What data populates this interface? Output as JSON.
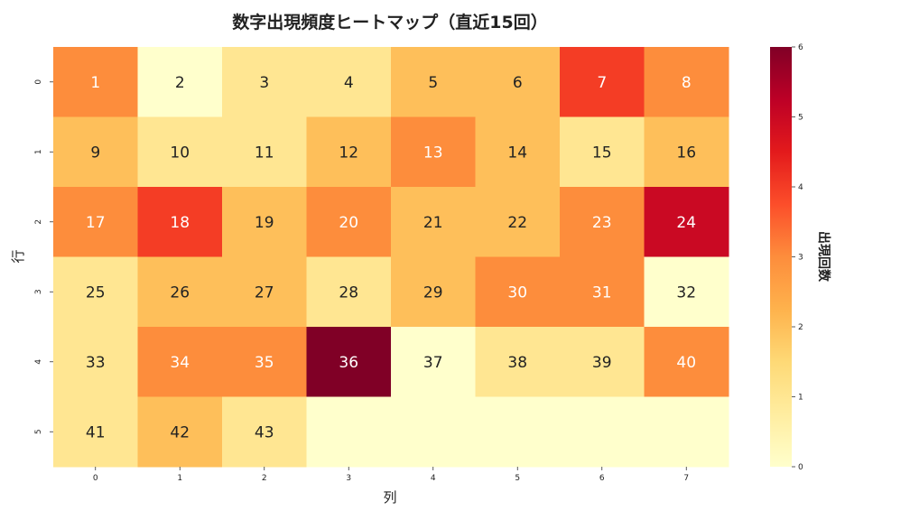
{
  "chart_data": {
    "type": "heatmap",
    "title": "数字出現頻度ヒートマップ（直近15回）",
    "xlabel": "列",
    "ylabel": "行",
    "colorbar_label": "出現回数",
    "colormap": "YlOrRd",
    "x_ticks": [
      "0",
      "1",
      "2",
      "3",
      "4",
      "5",
      "6",
      "7"
    ],
    "y_ticks": [
      "0",
      "1",
      "2",
      "3",
      "4",
      "5"
    ],
    "colorbar_range": [
      0,
      6
    ],
    "colorbar_ticks": [
      "0",
      "1",
      "2",
      "3",
      "4",
      "5",
      "6"
    ],
    "cells": [
      [
        {
          "label": "1",
          "value": 3
        },
        {
          "label": "2",
          "value": 0
        },
        {
          "label": "3",
          "value": 1
        },
        {
          "label": "4",
          "value": 1
        },
        {
          "label": "5",
          "value": 2
        },
        {
          "label": "6",
          "value": 2
        },
        {
          "label": "7",
          "value": 4
        },
        {
          "label": "8",
          "value": 3
        }
      ],
      [
        {
          "label": "9",
          "value": 2
        },
        {
          "label": "10",
          "value": 1
        },
        {
          "label": "11",
          "value": 1
        },
        {
          "label": "12",
          "value": 2
        },
        {
          "label": "13",
          "value": 3
        },
        {
          "label": "14",
          "value": 2
        },
        {
          "label": "15",
          "value": 1
        },
        {
          "label": "16",
          "value": 2
        }
      ],
      [
        {
          "label": "17",
          "value": 3
        },
        {
          "label": "18",
          "value": 4
        },
        {
          "label": "19",
          "value": 2
        },
        {
          "label": "20",
          "value": 3
        },
        {
          "label": "21",
          "value": 2
        },
        {
          "label": "22",
          "value": 2
        },
        {
          "label": "23",
          "value": 3
        },
        {
          "label": "24",
          "value": 5
        }
      ],
      [
        {
          "label": "25",
          "value": 1
        },
        {
          "label": "26",
          "value": 2
        },
        {
          "label": "27",
          "value": 2
        },
        {
          "label": "28",
          "value": 1
        },
        {
          "label": "29",
          "value": 2
        },
        {
          "label": "30",
          "value": 3
        },
        {
          "label": "31",
          "value": 3
        },
        {
          "label": "32",
          "value": 0
        }
      ],
      [
        {
          "label": "33",
          "value": 1
        },
        {
          "label": "34",
          "value": 3
        },
        {
          "label": "35",
          "value": 3
        },
        {
          "label": "36",
          "value": 6
        },
        {
          "label": "37",
          "value": 0
        },
        {
          "label": "38",
          "value": 1
        },
        {
          "label": "39",
          "value": 1
        },
        {
          "label": "40",
          "value": 3
        }
      ],
      [
        {
          "label": "41",
          "value": 1
        },
        {
          "label": "42",
          "value": 2
        },
        {
          "label": "43",
          "value": 1
        },
        {
          "label": "",
          "value": 0
        },
        {
          "label": "",
          "value": 0
        },
        {
          "label": "",
          "value": 0
        },
        {
          "label": "",
          "value": 0
        },
        {
          "label": "",
          "value": 0
        }
      ]
    ]
  }
}
